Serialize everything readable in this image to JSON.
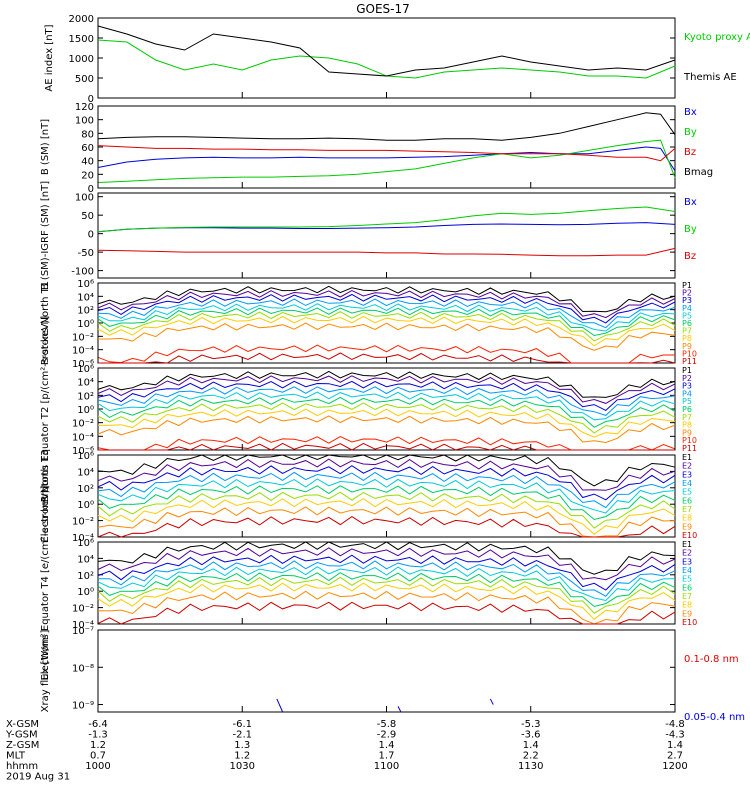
{
  "title": "GOES-17",
  "chart_data": [
    {
      "type": "line",
      "ylabel": "AE index [nT]",
      "ylim": [
        0,
        2000
      ],
      "ytick_labels": [
        "0",
        "500",
        "1000",
        "1500",
        "2000"
      ],
      "x": [
        0,
        10,
        20,
        30,
        40,
        50,
        60,
        70,
        80,
        90,
        100,
        110,
        120,
        130,
        140,
        150,
        160,
        170,
        180,
        190,
        200
      ],
      "series": [
        {
          "name": "Kyoto proxy AE",
          "color": "#00cc00",
          "values": [
            1450,
            1400,
            950,
            700,
            850,
            700,
            950,
            1050,
            1000,
            850,
            550,
            500,
            650,
            700,
            750,
            700,
            650,
            550,
            550,
            500,
            800
          ]
        },
        {
          "name": "Themis AE",
          "color": "#000000",
          "values": [
            1800,
            1600,
            1350,
            1200,
            1600,
            1500,
            1400,
            1250,
            650,
            600,
            550,
            700,
            750,
            900,
            1050,
            900,
            800,
            700,
            750,
            700,
            950
          ]
        }
      ]
    },
    {
      "type": "line",
      "ylabel": "B (SM) [nT]",
      "ylim": [
        0,
        120
      ],
      "ytick_labels": [
        "0",
        "20",
        "40",
        "60",
        "80",
        "100",
        "120"
      ],
      "x": [
        0,
        10,
        20,
        30,
        40,
        50,
        60,
        70,
        80,
        90,
        100,
        110,
        120,
        130,
        140,
        150,
        160,
        170,
        180,
        190,
        195,
        200
      ],
      "series": [
        {
          "name": "Bx",
          "color": "#0000dd",
          "values": [
            30,
            38,
            42,
            44,
            45,
            44,
            44,
            45,
            44,
            44,
            44,
            45,
            46,
            48,
            50,
            52,
            50,
            50,
            55,
            60,
            58,
            25
          ]
        },
        {
          "name": "By",
          "color": "#00cc00",
          "values": [
            8,
            10,
            12,
            14,
            15,
            16,
            16,
            17,
            18,
            20,
            24,
            28,
            36,
            44,
            50,
            44,
            48,
            55,
            62,
            68,
            70,
            15
          ]
        },
        {
          "name": "Bz",
          "color": "#dd0000",
          "values": [
            62,
            60,
            58,
            58,
            57,
            57,
            56,
            56,
            55,
            55,
            55,
            54,
            53,
            52,
            50,
            50,
            50,
            48,
            45,
            45,
            40,
            58
          ]
        },
        {
          "name": "Bmag",
          "color": "#000000",
          "values": [
            72,
            74,
            75,
            75,
            74,
            73,
            72,
            72,
            73,
            72,
            70,
            70,
            72,
            72,
            70,
            74,
            80,
            90,
            100,
            110,
            108,
            78
          ]
        }
      ]
    },
    {
      "type": "line",
      "ylabel": "B (SM)-IGRF (SM) [nT]",
      "ylim": [
        -120,
        110
      ],
      "ytick_labels": [
        "-100",
        "-50",
        "0",
        "50",
        "100"
      ],
      "x": [
        0,
        10,
        20,
        30,
        40,
        50,
        60,
        70,
        80,
        90,
        100,
        110,
        120,
        130,
        140,
        150,
        160,
        170,
        180,
        190,
        200
      ],
      "series": [
        {
          "name": "Bx",
          "color": "#0000dd",
          "values": [
            5,
            12,
            15,
            16,
            16,
            15,
            15,
            14,
            14,
            15,
            16,
            18,
            22,
            25,
            26,
            25,
            24,
            25,
            28,
            30,
            25
          ]
        },
        {
          "name": "By",
          "color": "#00cc00",
          "values": [
            5,
            12,
            15,
            17,
            18,
            18,
            18,
            18,
            19,
            22,
            26,
            30,
            38,
            48,
            55,
            52,
            55,
            62,
            68,
            72,
            60
          ]
        },
        {
          "name": "Bz",
          "color": "#dd0000",
          "values": [
            -45,
            -46,
            -48,
            -50,
            -50,
            -50,
            -50,
            -50,
            -50,
            -50,
            -52,
            -52,
            -55,
            -55,
            -56,
            -58,
            -60,
            -60,
            -58,
            -58,
            -40
          ]
        }
      ]
    },
    {
      "type": "line",
      "ylabel": "Protons North T1",
      "log_scale": true,
      "ylim_log10": [
        -6,
        6
      ],
      "ytick_labels": [
        "10⁶",
        "10⁴",
        "10²",
        "10⁰",
        "10⁻²",
        "10⁻⁴",
        "10⁻⁶"
      ],
      "legend": [
        "P1",
        "P2",
        "P3",
        "P4",
        "P5",
        "P6",
        "P7",
        "P8",
        "P9",
        "P10",
        "P11"
      ],
      "colors": [
        "#000000",
        "#550099",
        "#0000dd",
        "#0099ff",
        "#00ccdd",
        "#00cc66",
        "#99dd00",
        "#ffcc00",
        "#ff8800",
        "#ff2200",
        "#cc0000"
      ],
      "log10_peak_by_channel": [
        5.0,
        4.4,
        3.8,
        3.1,
        2.4,
        1.8,
        1.2,
        0.5,
        -0.5,
        -3.8,
        -5.0
      ]
    },
    {
      "type": "line",
      "ylabel": "Protons Equator T2 [p/(cm²-s-sr-keV)]",
      "log_scale": true,
      "ylim_log10": [
        -6,
        6
      ],
      "ytick_labels": [
        "10⁶",
        "10⁴",
        "10²",
        "10⁰",
        "10⁻²",
        "10⁻⁴",
        "10⁻⁶"
      ],
      "legend": [
        "P1",
        "P2",
        "P3",
        "P4",
        "P5",
        "P6",
        "P7",
        "P8",
        "P9",
        "P10",
        "P11"
      ],
      "colors": [
        "#000000",
        "#550099",
        "#0000dd",
        "#0099ff",
        "#00ccdd",
        "#00cc66",
        "#99dd00",
        "#ffcc00",
        "#ff8800",
        "#ff2200",
        "#cc0000"
      ],
      "log10_peak_by_channel": [
        5.0,
        4.4,
        3.6,
        2.8,
        2.0,
        1.2,
        0.4,
        -0.5,
        -1.5,
        -4.5,
        -5.5
      ]
    },
    {
      "type": "line",
      "ylabel": "Electrons North T3",
      "log_scale": true,
      "ylim_log10": [
        -4,
        6
      ],
      "ytick_labels": [
        "10⁶",
        "10⁴",
        "10²",
        "10⁰",
        "10⁻²",
        "10⁻⁴"
      ],
      "legend": [
        "E1",
        "E2",
        "E3",
        "E4",
        "E5",
        "E6",
        "E7",
        "E8",
        "E9",
        "E10"
      ],
      "colors": [
        "#000000",
        "#550099",
        "#0000dd",
        "#0099ff",
        "#00ccdd",
        "#00cc66",
        "#99dd00",
        "#ffcc00",
        "#ff8800",
        "#cc0000"
      ],
      "log10_peak_by_channel": [
        5.9,
        5.0,
        4.2,
        3.4,
        2.6,
        1.8,
        1.0,
        0.2,
        -0.8,
        -2.0
      ]
    },
    {
      "type": "line",
      "ylabel": "Electrons Equator T4 [e/(cm²-s-sr-keV)]",
      "log_scale": true,
      "ylim_log10": [
        -4,
        6
      ],
      "ytick_labels": [
        "10⁶",
        "10⁴",
        "10²",
        "10⁰",
        "10⁻²",
        "10⁻⁴"
      ],
      "legend": [
        "E1",
        "E2",
        "E3",
        "E4",
        "E5",
        "E6",
        "E7",
        "E8",
        "E9",
        "E10"
      ],
      "colors": [
        "#000000",
        "#550099",
        "#0000dd",
        "#0099ff",
        "#00ccdd",
        "#00cc66",
        "#99dd00",
        "#ffcc00",
        "#ff8800",
        "#cc0000"
      ],
      "log10_peak_by_channel": [
        5.6,
        4.8,
        3.9,
        3.2,
        2.5,
        1.8,
        1.2,
        0.5,
        -0.5,
        -1.8
      ]
    },
    {
      "type": "line",
      "ylabel": "Xray flux [W/m²]",
      "log_scale": true,
      "ylim_log10": [
        -9.2,
        -7
      ],
      "ytick_labels": [
        "10⁻⁷",
        "10⁻⁸",
        "10⁻⁹"
      ],
      "series": [
        {
          "name": "0.1-0.8 nm",
          "color": "#dd0000",
          "values": []
        },
        {
          "name": "0.05-0.4 nm",
          "color": "#0000dd",
          "segments": [
            [
              [
                62,
                -8.85
              ],
              [
                64,
                -9.2
              ]
            ],
            [
              [
                104,
                -9.05
              ],
              [
                105,
                -9.2
              ]
            ],
            [
              [
                136,
                -8.85
              ],
              [
                137,
                -9.0
              ]
            ]
          ]
        }
      ]
    }
  ],
  "xaxis": {
    "rows": [
      {
        "label": "X-GSM",
        "values": [
          "-6.4",
          "-6.1",
          "-5.8",
          "-5.3",
          "-4.8"
        ]
      },
      {
        "label": "Y-GSM",
        "values": [
          "-1.3",
          "-2.1",
          "-2.9",
          "-3.6",
          "-4.3"
        ]
      },
      {
        "label": "Z-GSM",
        "values": [
          "1.2",
          "1.3",
          "1.4",
          "1.4",
          "1.4"
        ]
      },
      {
        "label": "MLT",
        "values": [
          "0.7",
          "1.2",
          "1.7",
          "2.2",
          "2.7"
        ]
      },
      {
        "label": "hhmm",
        "values": [
          "1000",
          "1030",
          "1100",
          "1130",
          "1200"
        ]
      }
    ],
    "date": "2019 Aug 31"
  }
}
